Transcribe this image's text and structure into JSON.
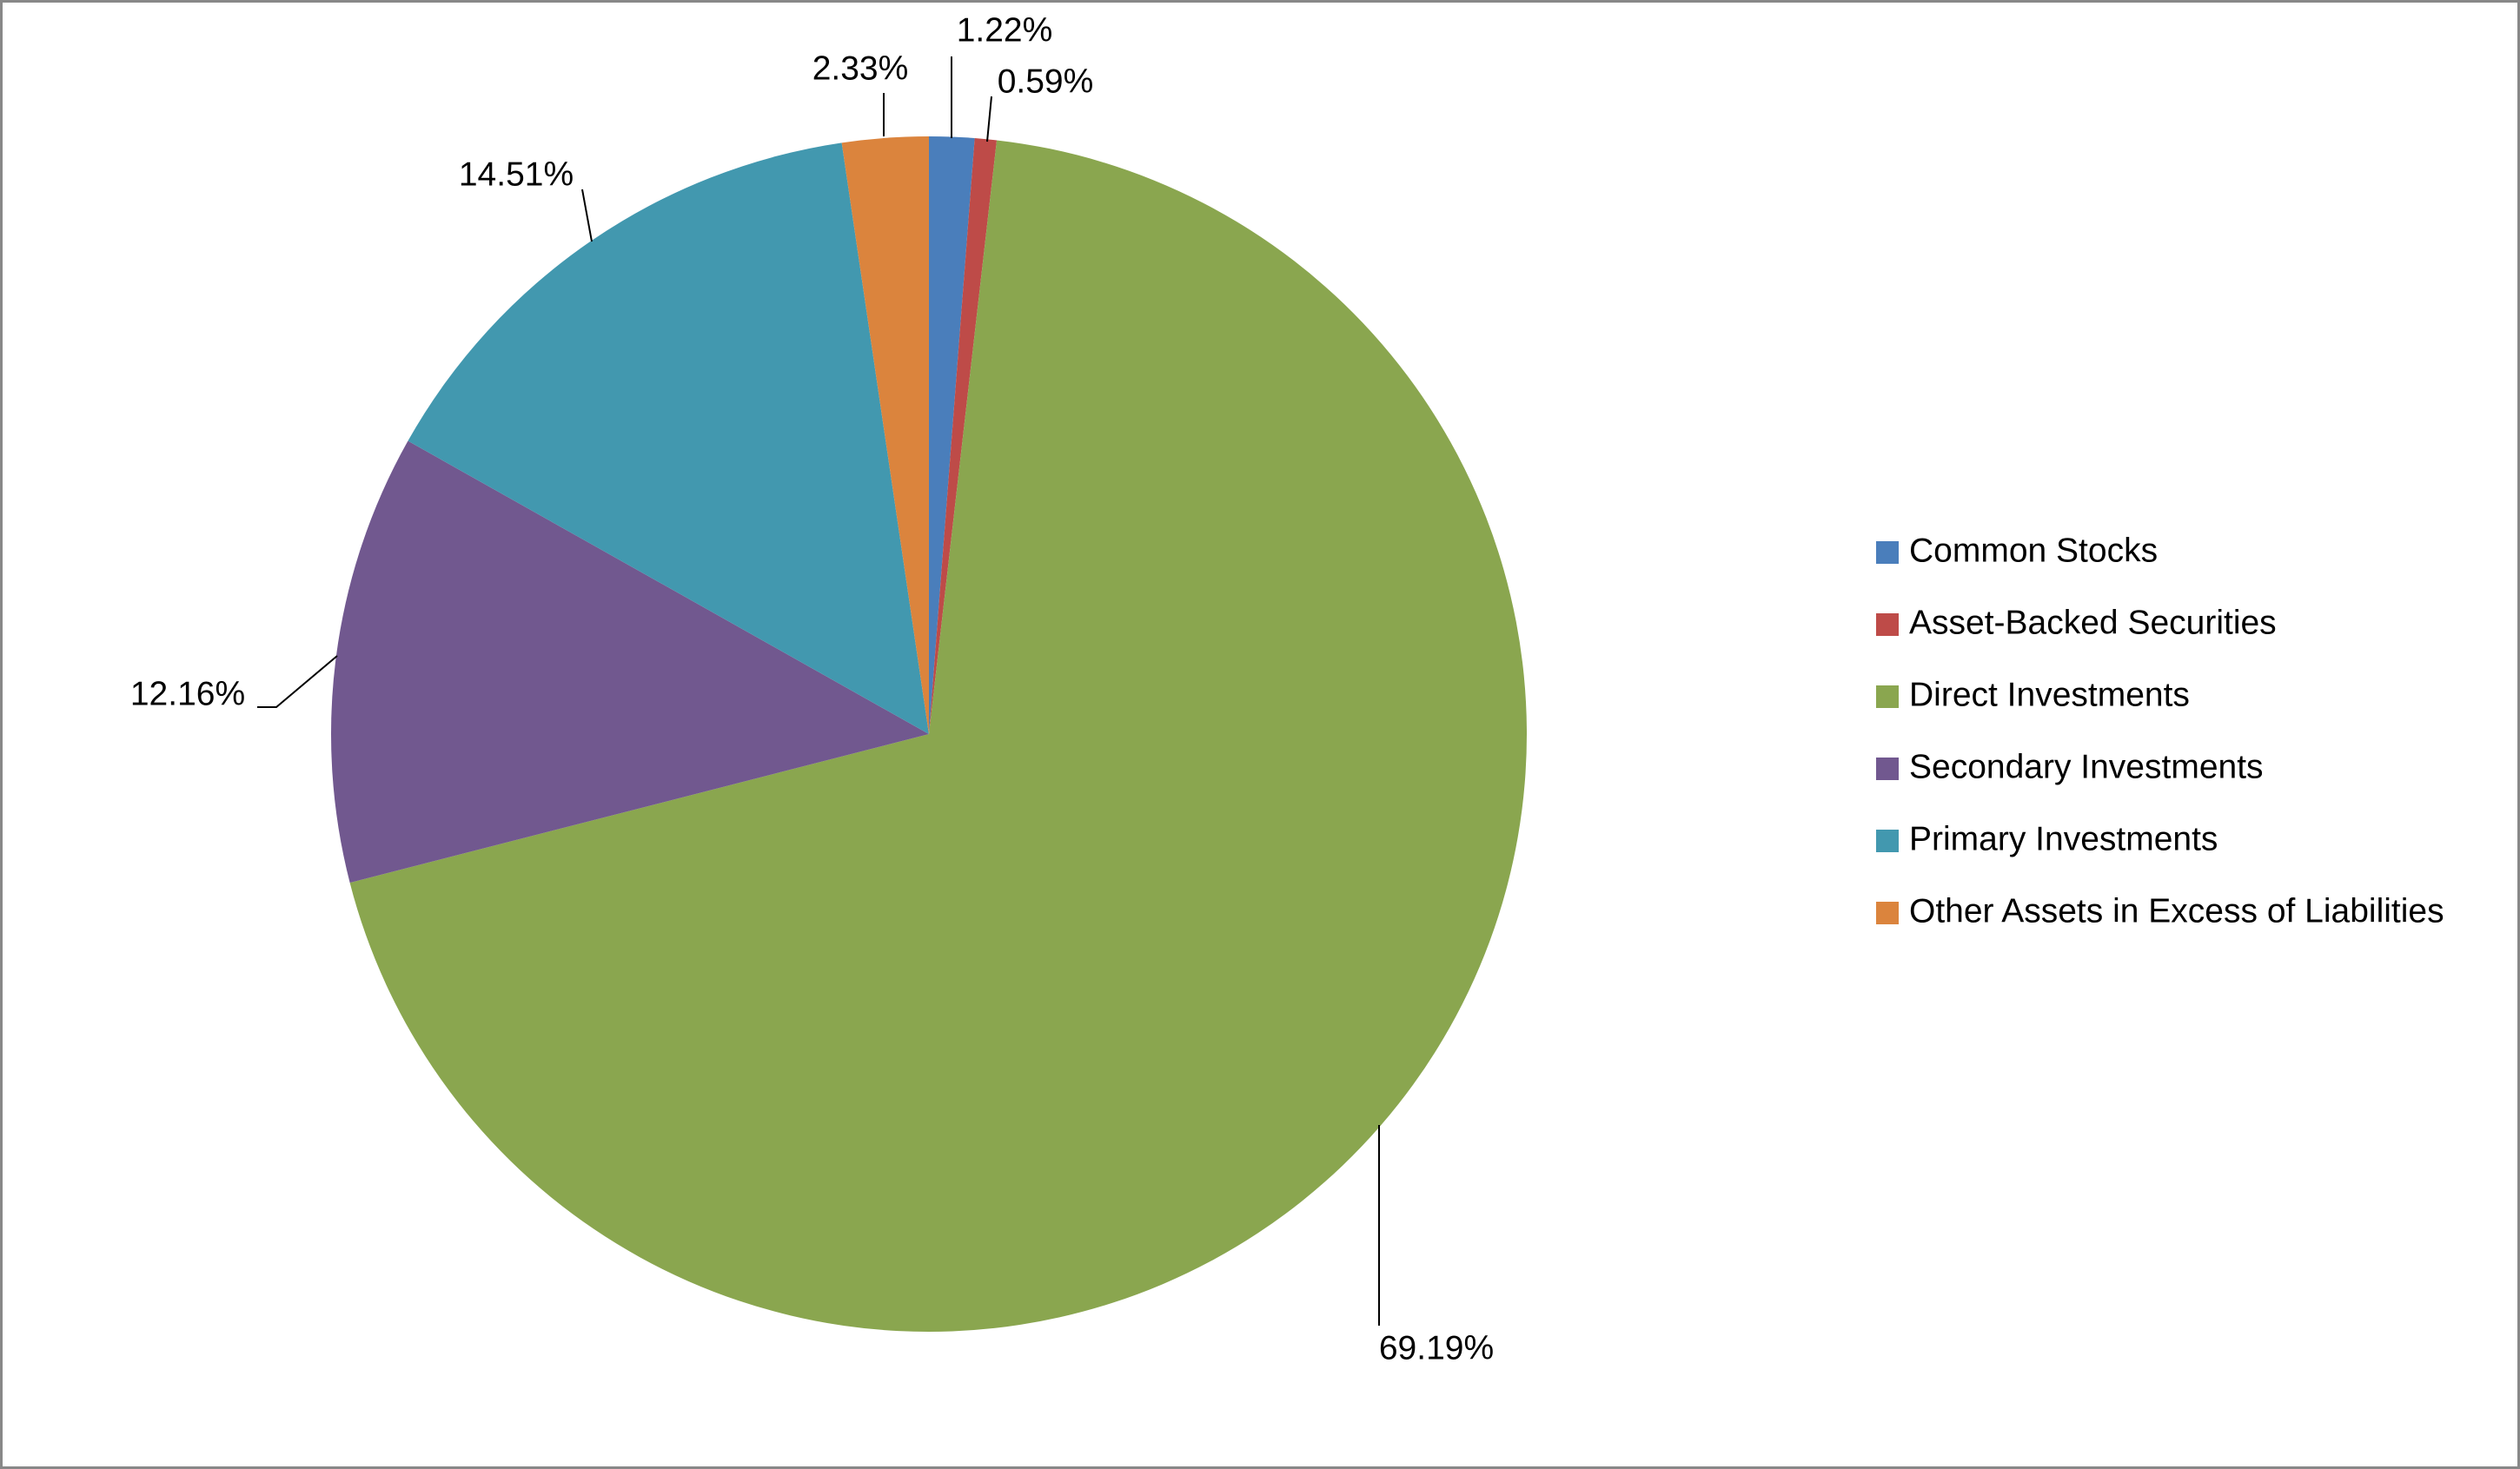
{
  "chart_data": {
    "type": "pie",
    "categories": [
      "Common Stocks",
      "Asset-Backed Securities",
      "Direct Investments",
      "Secondary Investments",
      "Primary Investments",
      "Other Assets in Excess of Liabilities"
    ],
    "values": [
      1.22,
      0.59,
      69.19,
      12.16,
      14.51,
      2.33
    ],
    "value_labels": [
      "1.22%",
      "0.59%",
      "69.19%",
      "12.16%",
      "14.51%",
      "2.33%"
    ],
    "colors": [
      "#4a7ebb",
      "#be4b48",
      "#8aa64f",
      "#71588f",
      "#4298af",
      "#db843d"
    ],
    "legend": "right"
  }
}
